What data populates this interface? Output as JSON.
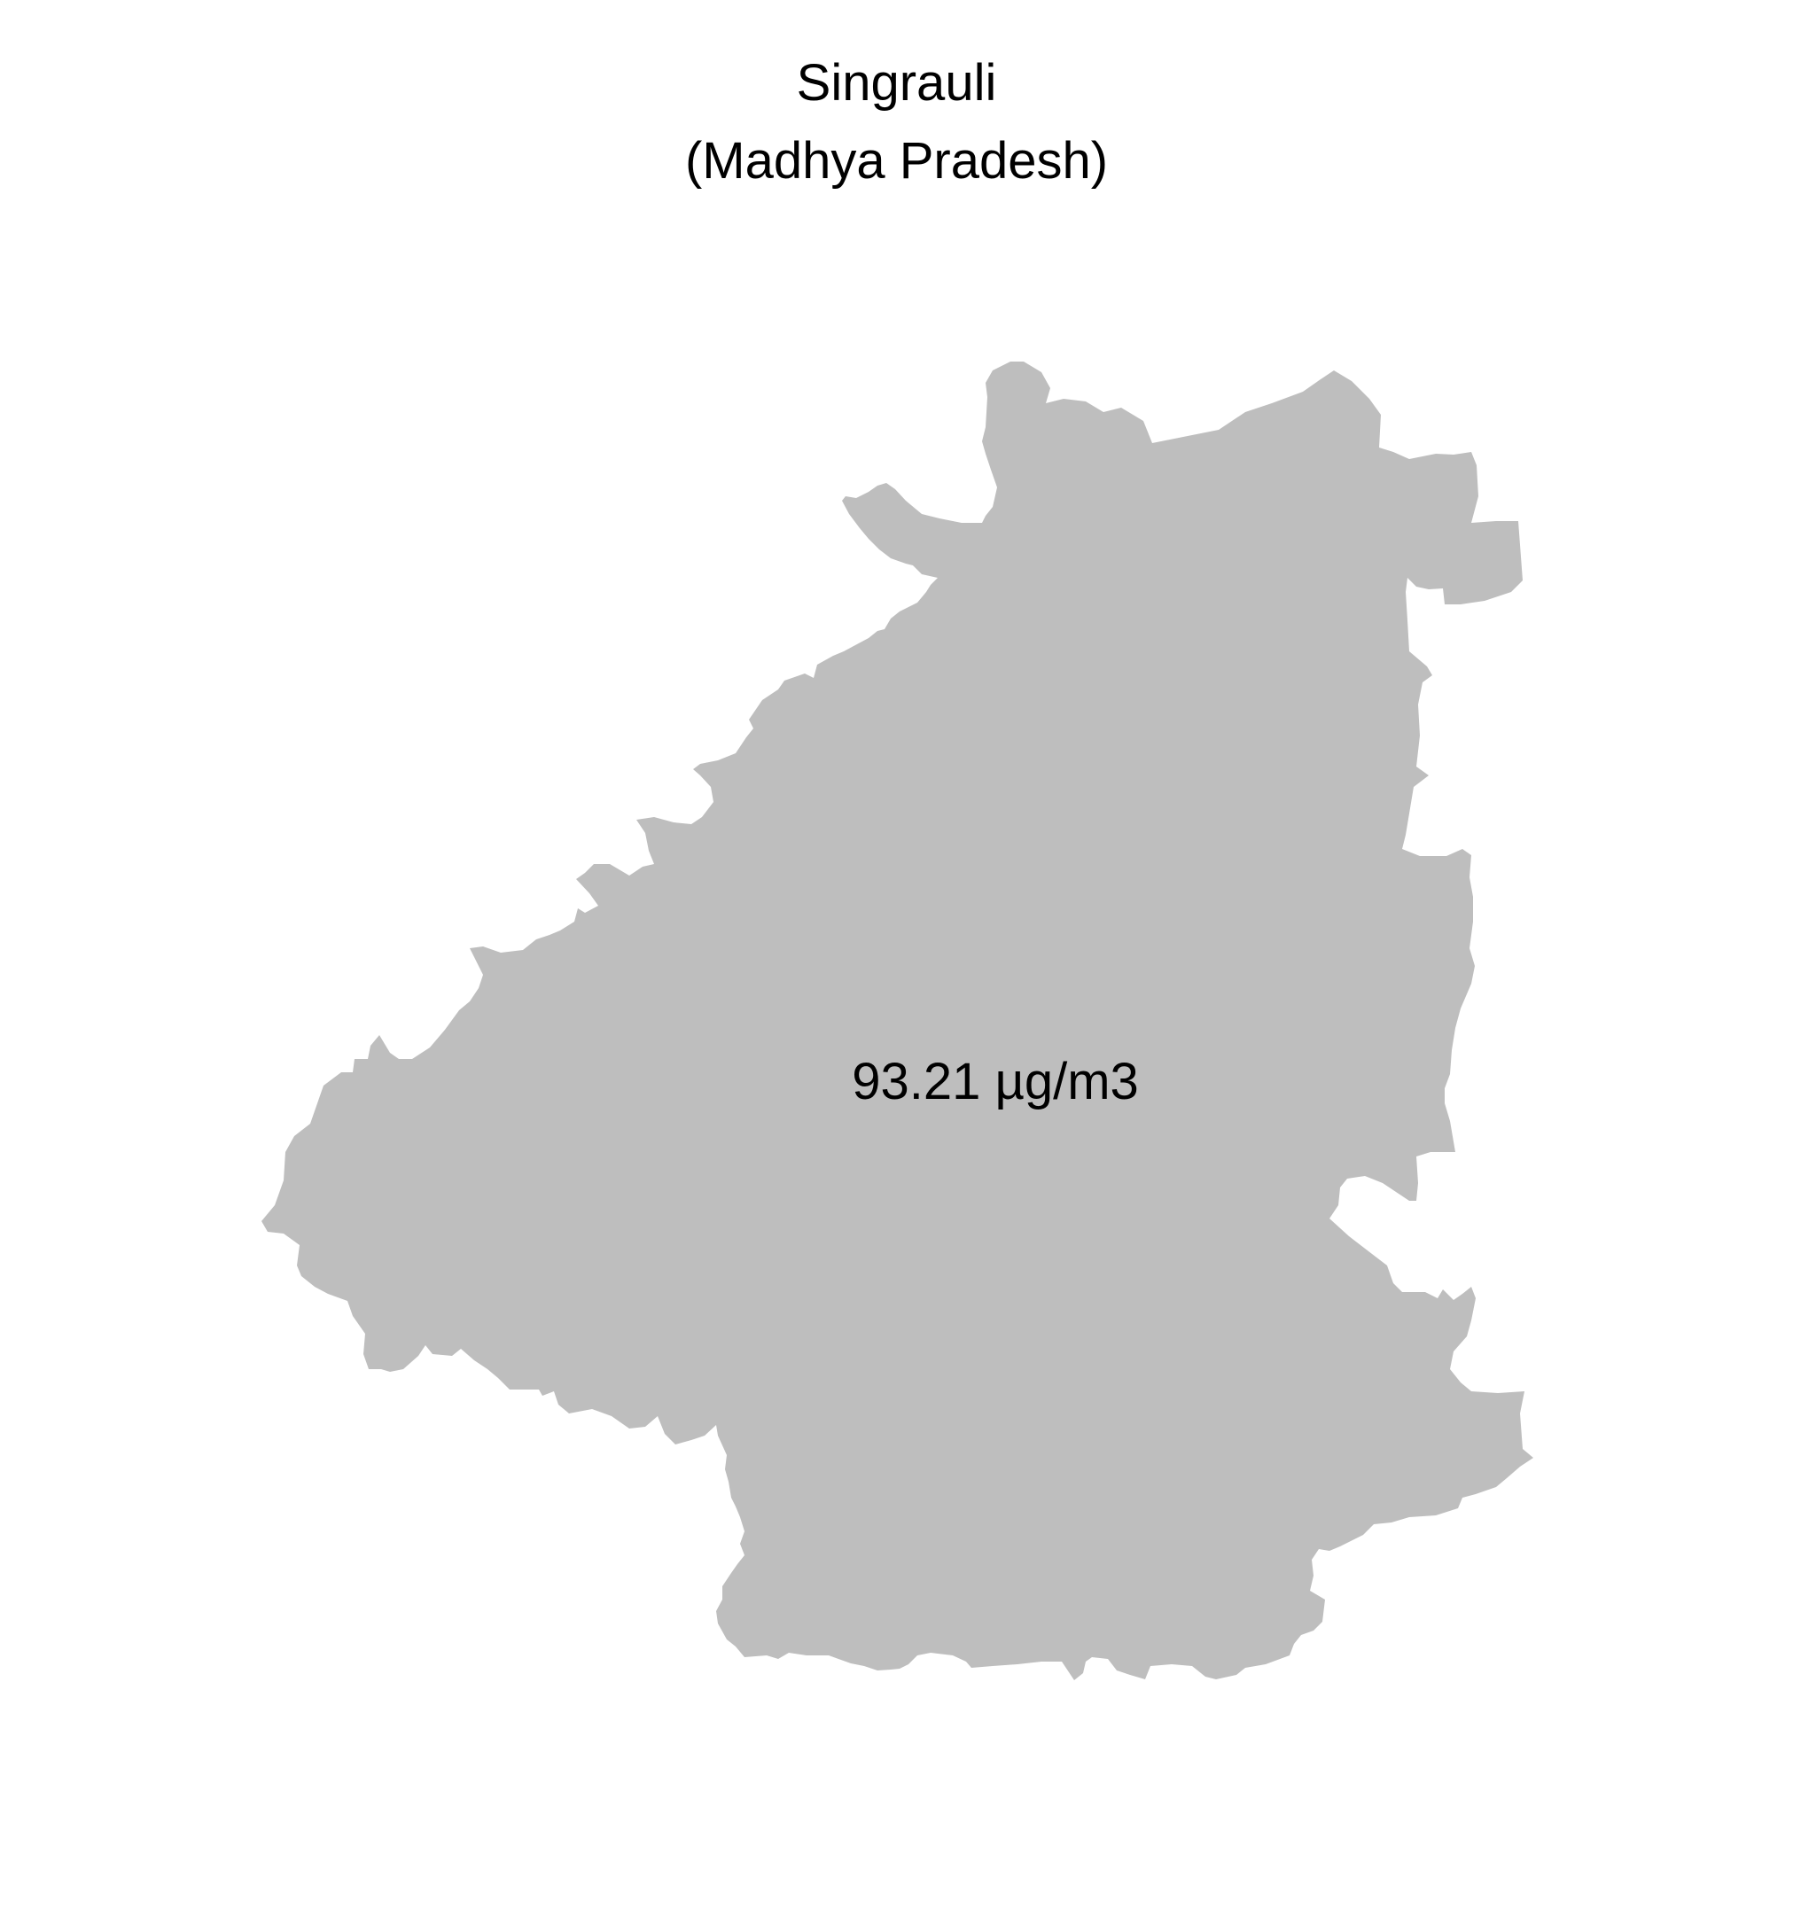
{
  "title": {
    "district": "Singrauli",
    "state": "(Madhya Pradesh)"
  },
  "map": {
    "region_fill": "#bebebe",
    "value_label": "93.21 µg/m3"
  }
}
